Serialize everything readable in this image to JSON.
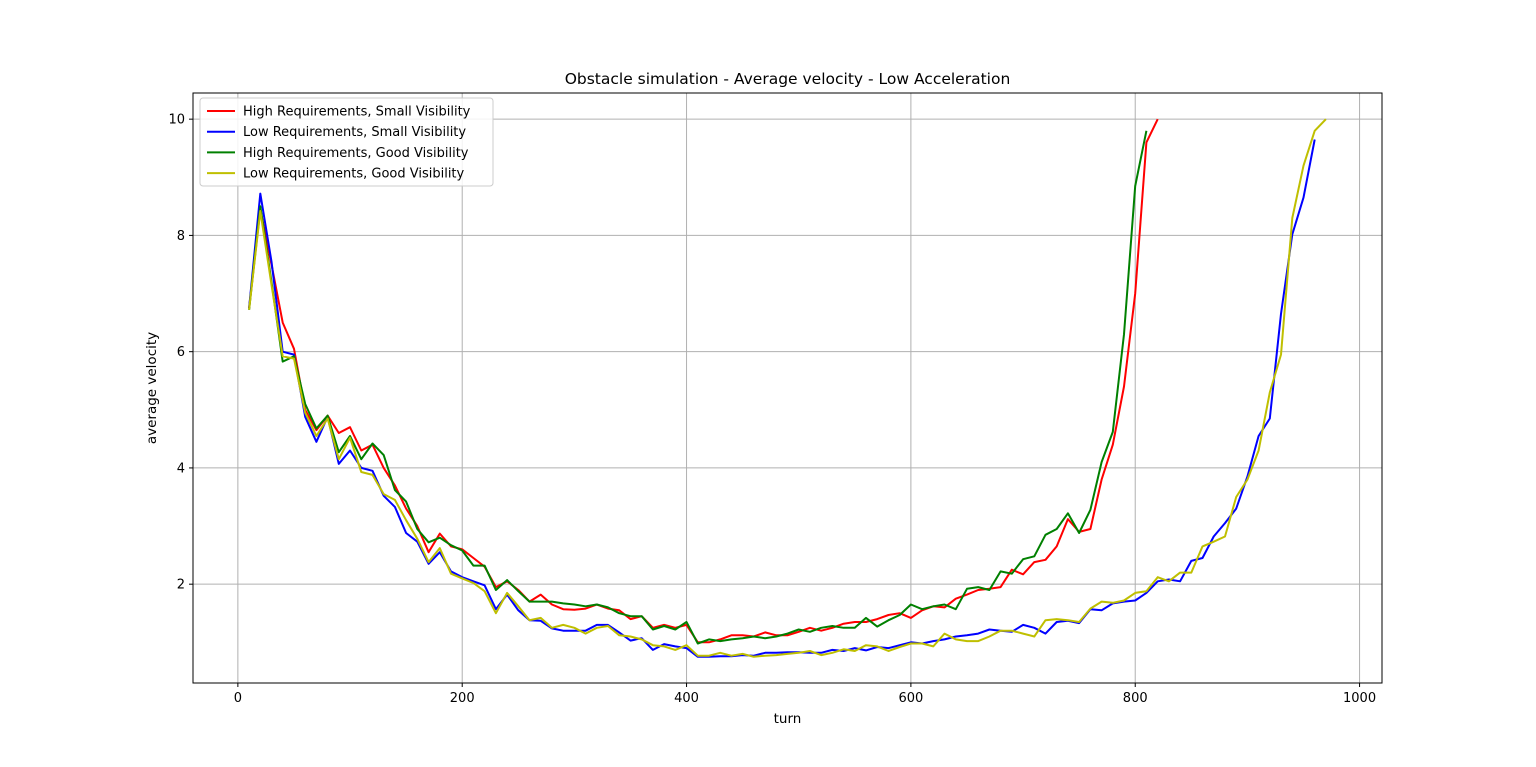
{
  "chart_data": {
    "type": "line",
    "title": "Obstacle simulation - Average velocity - Low Acceleration",
    "xlabel": "turn",
    "ylabel": "average velocity",
    "xlim": [
      -40,
      1020
    ],
    "ylim": [
      0.3,
      10.45
    ],
    "xticks": [
      0,
      200,
      400,
      600,
      800,
      1000
    ],
    "yticks": [
      2,
      4,
      6,
      8,
      10
    ],
    "grid": true,
    "legend_position": "top-left",
    "series": [
      {
        "name": "High Requirements, Small Visibility",
        "color": "#ff0000",
        "x": [
          10,
          20,
          30,
          40,
          50,
          60,
          70,
          80,
          90,
          100,
          110,
          120,
          130,
          140,
          150,
          160,
          170,
          180,
          190,
          200,
          210,
          220,
          230,
          240,
          250,
          260,
          270,
          280,
          290,
          300,
          310,
          320,
          330,
          340,
          350,
          360,
          370,
          380,
          390,
          400,
          410,
          420,
          430,
          440,
          450,
          460,
          470,
          480,
          490,
          500,
          510,
          520,
          530,
          540,
          550,
          560,
          570,
          580,
          590,
          600,
          610,
          620,
          630,
          640,
          650,
          660,
          670,
          680,
          690,
          700,
          710,
          720,
          730,
          740,
          750,
          760,
          770,
          780,
          790,
          800,
          810,
          820
        ],
        "y": [
          6.75,
          8.45,
          7.5,
          6.5,
          6.05,
          5.0,
          4.65,
          4.9,
          4.6,
          4.7,
          4.3,
          4.4,
          4.0,
          3.7,
          3.3,
          3.0,
          2.55,
          2.87,
          2.65,
          2.6,
          2.45,
          2.3,
          1.95,
          2.05,
          1.9,
          1.7,
          1.82,
          1.65,
          1.57,
          1.56,
          1.58,
          1.65,
          1.58,
          1.55,
          1.4,
          1.45,
          1.25,
          1.3,
          1.25,
          1.3,
          1.0,
          1.0,
          1.05,
          1.12,
          1.12,
          1.1,
          1.17,
          1.12,
          1.12,
          1.18,
          1.25,
          1.2,
          1.25,
          1.32,
          1.35,
          1.35,
          1.4,
          1.47,
          1.5,
          1.42,
          1.55,
          1.62,
          1.6,
          1.75,
          1.82,
          1.9,
          1.92,
          1.95,
          2.25,
          2.17,
          2.38,
          2.42,
          2.65,
          3.12,
          2.9,
          2.95,
          3.8,
          4.4,
          5.4,
          7.0,
          9.6,
          10.0
        ]
      },
      {
        "name": "Low Requirements, Small Visibility",
        "color": "#0000ff",
        "x": [
          10,
          20,
          30,
          40,
          50,
          60,
          70,
          80,
          90,
          100,
          110,
          120,
          130,
          140,
          150,
          160,
          170,
          180,
          190,
          200,
          210,
          220,
          230,
          240,
          250,
          260,
          270,
          280,
          290,
          300,
          310,
          320,
          330,
          340,
          350,
          360,
          370,
          380,
          390,
          400,
          410,
          420,
          430,
          440,
          450,
          460,
          470,
          480,
          490,
          500,
          510,
          520,
          530,
          540,
          550,
          560,
          570,
          580,
          590,
          600,
          610,
          620,
          630,
          640,
          650,
          660,
          670,
          680,
          690,
          700,
          710,
          720,
          730,
          740,
          750,
          760,
          770,
          780,
          790,
          800,
          810,
          820,
          830,
          840,
          850,
          860,
          870,
          880,
          890,
          900,
          910,
          920,
          930,
          940,
          950,
          960
        ],
        "y": [
          6.75,
          8.72,
          7.55,
          6.0,
          5.95,
          4.88,
          4.45,
          4.88,
          4.07,
          4.3,
          4.0,
          3.95,
          3.52,
          3.33,
          2.88,
          2.73,
          2.35,
          2.55,
          2.22,
          2.12,
          2.05,
          1.98,
          1.57,
          1.82,
          1.55,
          1.38,
          1.37,
          1.24,
          1.2,
          1.2,
          1.2,
          1.3,
          1.3,
          1.17,
          1.03,
          1.07,
          0.87,
          0.97,
          0.93,
          0.9,
          0.75,
          0.75,
          0.76,
          0.76,
          0.78,
          0.77,
          0.82,
          0.82,
          0.83,
          0.83,
          0.82,
          0.82,
          0.87,
          0.85,
          0.9,
          0.86,
          0.92,
          0.9,
          0.95,
          1.0,
          0.98,
          1.02,
          1.05,
          1.1,
          1.12,
          1.15,
          1.22,
          1.2,
          1.18,
          1.3,
          1.25,
          1.15,
          1.35,
          1.37,
          1.33,
          1.57,
          1.55,
          1.67,
          1.7,
          1.72,
          1.85,
          2.05,
          2.08,
          2.05,
          2.4,
          2.45,
          2.82,
          3.05,
          3.3,
          3.85,
          4.55,
          4.85,
          6.65,
          8.02,
          8.65,
          9.65
        ]
      },
      {
        "name": "High Requirements, Good Visibility",
        "color": "#008000",
        "x": [
          10,
          20,
          30,
          40,
          50,
          60,
          70,
          80,
          90,
          100,
          110,
          120,
          130,
          140,
          150,
          160,
          170,
          180,
          190,
          200,
          210,
          220,
          230,
          240,
          250,
          260,
          270,
          280,
          290,
          300,
          310,
          320,
          330,
          340,
          350,
          360,
          370,
          380,
          390,
          400,
          410,
          420,
          430,
          440,
          450,
          460,
          470,
          480,
          490,
          500,
          510,
          520,
          530,
          540,
          550,
          560,
          570,
          580,
          590,
          600,
          610,
          620,
          630,
          640,
          650,
          660,
          670,
          680,
          690,
          700,
          710,
          720,
          730,
          740,
          750,
          760,
          770,
          780,
          790,
          800,
          810
        ],
        "y": [
          6.72,
          8.5,
          7.2,
          5.83,
          5.92,
          5.1,
          4.68,
          4.9,
          4.27,
          4.55,
          4.15,
          4.42,
          4.22,
          3.62,
          3.42,
          2.95,
          2.72,
          2.8,
          2.67,
          2.58,
          2.32,
          2.32,
          1.9,
          2.07,
          1.88,
          1.7,
          1.7,
          1.7,
          1.67,
          1.65,
          1.62,
          1.65,
          1.6,
          1.5,
          1.45,
          1.45,
          1.22,
          1.28,
          1.22,
          1.35,
          0.98,
          1.05,
          1.02,
          1.05,
          1.07,
          1.1,
          1.07,
          1.1,
          1.15,
          1.22,
          1.18,
          1.25,
          1.28,
          1.25,
          1.25,
          1.42,
          1.27,
          1.38,
          1.47,
          1.65,
          1.57,
          1.62,
          1.65,
          1.57,
          1.92,
          1.95,
          1.9,
          2.22,
          2.18,
          2.43,
          2.48,
          2.85,
          2.95,
          3.22,
          2.88,
          3.28,
          4.1,
          4.62,
          6.3,
          8.85,
          9.8
        ]
      },
      {
        "name": "Low Requirements, Good Visibility",
        "color": "#bfbf00",
        "x": [
          10,
          20,
          30,
          40,
          50,
          60,
          70,
          80,
          90,
          100,
          110,
          120,
          130,
          140,
          150,
          160,
          170,
          180,
          190,
          200,
          210,
          220,
          230,
          240,
          250,
          260,
          270,
          280,
          290,
          300,
          310,
          320,
          330,
          340,
          350,
          360,
          370,
          380,
          390,
          400,
          410,
          420,
          430,
          440,
          450,
          460,
          470,
          480,
          490,
          500,
          510,
          520,
          530,
          540,
          550,
          560,
          570,
          580,
          590,
          600,
          610,
          620,
          630,
          640,
          650,
          660,
          670,
          680,
          690,
          700,
          710,
          720,
          730,
          740,
          750,
          760,
          770,
          780,
          790,
          800,
          810,
          820,
          830,
          840,
          850,
          860,
          870,
          880,
          890,
          900,
          910,
          920,
          930,
          940,
          950,
          960,
          970
        ],
        "y": [
          6.72,
          8.42,
          7.15,
          5.92,
          5.88,
          4.95,
          4.55,
          4.85,
          4.15,
          4.52,
          3.93,
          3.88,
          3.55,
          3.45,
          3.1,
          2.78,
          2.38,
          2.62,
          2.18,
          2.1,
          2.02,
          1.88,
          1.5,
          1.85,
          1.62,
          1.38,
          1.42,
          1.25,
          1.3,
          1.25,
          1.15,
          1.25,
          1.28,
          1.12,
          1.1,
          1.05,
          0.95,
          0.93,
          0.87,
          0.95,
          0.77,
          0.77,
          0.82,
          0.77,
          0.8,
          0.75,
          0.77,
          0.78,
          0.8,
          0.82,
          0.85,
          0.78,
          0.82,
          0.88,
          0.85,
          0.95,
          0.93,
          0.85,
          0.92,
          0.98,
          0.98,
          0.93,
          1.15,
          1.05,
          1.02,
          1.02,
          1.1,
          1.2,
          1.2,
          1.15,
          1.1,
          1.38,
          1.4,
          1.38,
          1.35,
          1.58,
          1.7,
          1.68,
          1.72,
          1.85,
          1.88,
          2.12,
          2.05,
          2.2,
          2.2,
          2.65,
          2.73,
          2.82,
          3.5,
          3.8,
          4.3,
          5.3,
          5.95,
          8.3,
          9.2,
          9.8,
          10.0
        ]
      }
    ]
  }
}
